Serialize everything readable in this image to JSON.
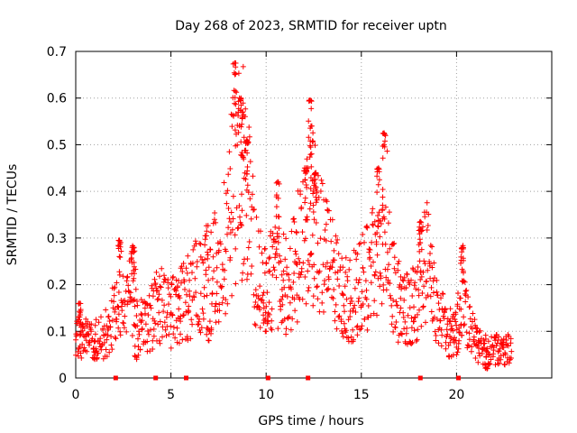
{
  "chart_data": {
    "type": "scatter",
    "title": "Day 268 of 2023, SRMTID for receiver uptn",
    "xlabel": "GPS time / hours",
    "ylabel": "SRMTID / TECUs",
    "xlim": [
      0,
      25
    ],
    "ylim": [
      0,
      0.7
    ],
    "xticks": [
      0,
      5,
      10,
      15,
      20
    ],
    "xtick_labels": [
      "0",
      "5",
      "10",
      "15",
      "20"
    ],
    "yticks": [
      0,
      0.1,
      0.2,
      0.3,
      0.4,
      0.5,
      0.6,
      0.7
    ],
    "ytick_labels": [
      "0",
      "0.1",
      "0.2",
      "0.3",
      "0.4",
      "0.5",
      "0.6",
      "0.7"
    ],
    "grid": true,
    "marker": "+",
    "color": "#ff0000",
    "zero_markers_x": [
      2.1,
      4.2,
      5.8,
      10.1,
      12.2,
      18.1,
      20.1
    ],
    "envelope": {
      "x": [
        0.0,
        0.3,
        0.6,
        1.0,
        1.5,
        2.0,
        2.3,
        2.6,
        3.0,
        3.5,
        4.0,
        4.3,
        4.6,
        5.0,
        5.5,
        6.0,
        6.5,
        7.0,
        7.5,
        8.0,
        8.3,
        8.6,
        9.0,
        9.5,
        10.0,
        10.5,
        11.0,
        11.5,
        12.0,
        12.3,
        12.6,
        13.0,
        13.5,
        14.0,
        14.5,
        15.0,
        15.5,
        16.0,
        16.3,
        16.6,
        17.0,
        17.5,
        18.0,
        18.3,
        18.6,
        19.0,
        19.5,
        20.0,
        20.3,
        20.6,
        21.0,
        21.5,
        22.0,
        22.5,
        23.0
      ],
      "y": [
        0.1,
        0.09,
        0.08,
        0.08,
        0.09,
        0.13,
        0.17,
        0.15,
        0.19,
        0.11,
        0.13,
        0.17,
        0.15,
        0.14,
        0.16,
        0.18,
        0.2,
        0.22,
        0.25,
        0.3,
        0.42,
        0.5,
        0.38,
        0.22,
        0.2,
        0.22,
        0.2,
        0.24,
        0.3,
        0.36,
        0.33,
        0.27,
        0.22,
        0.18,
        0.17,
        0.2,
        0.23,
        0.28,
        0.34,
        0.2,
        0.16,
        0.15,
        0.17,
        0.27,
        0.22,
        0.14,
        0.1,
        0.09,
        0.2,
        0.12,
        0.08,
        0.06,
        0.06,
        0.06,
        0.06
      ]
    },
    "peaks": [
      {
        "x": 0.2,
        "y": 0.16
      },
      {
        "x": 2.3,
        "y": 0.295
      },
      {
        "x": 3.0,
        "y": 0.28
      },
      {
        "x": 8.35,
        "y": 0.675
      },
      {
        "x": 8.6,
        "y": 0.6
      },
      {
        "x": 8.75,
        "y": 0.57
      },
      {
        "x": 9.0,
        "y": 0.51
      },
      {
        "x": 10.6,
        "y": 0.42
      },
      {
        "x": 12.1,
        "y": 0.45
      },
      {
        "x": 12.3,
        "y": 0.595
      },
      {
        "x": 12.4,
        "y": 0.54
      },
      {
        "x": 12.6,
        "y": 0.44
      },
      {
        "x": 15.9,
        "y": 0.45
      },
      {
        "x": 16.2,
        "y": 0.525
      },
      {
        "x": 18.1,
        "y": 0.335
      },
      {
        "x": 20.3,
        "y": 0.28
      }
    ],
    "troughs": [
      {
        "x": 1.0,
        "y": 0.04
      },
      {
        "x": 3.2,
        "y": 0.04
      },
      {
        "x": 7.0,
        "y": 0.08
      },
      {
        "x": 10.0,
        "y": 0.1
      },
      {
        "x": 20.0,
        "y": 0.05
      },
      {
        "x": 21.6,
        "y": 0.02
      }
    ]
  }
}
